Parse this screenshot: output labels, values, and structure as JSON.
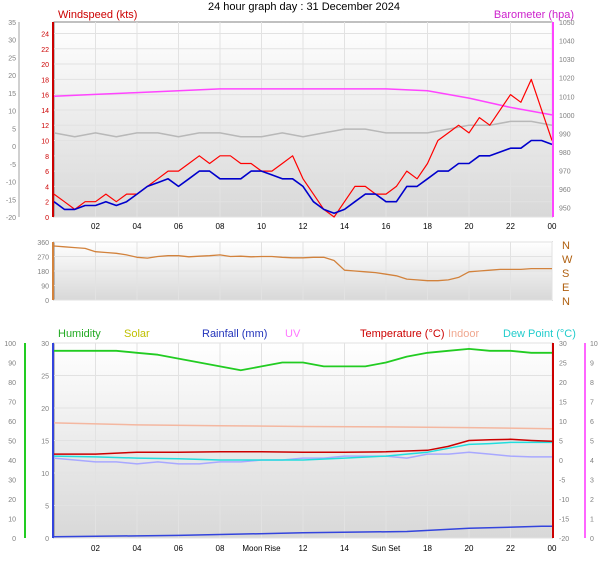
{
  "title": "24 hour graph day : 31 December 2024",
  "colors": {
    "windspeed": "#ff0000",
    "windspeed_avg": "#0000cc",
    "gust_avg": "#b8b8b8",
    "barometer": "#ff44ff",
    "direction": "#d2823c",
    "humidity": "#22cc22",
    "temperature": "#cc0000",
    "indoor": "#f4b7a0",
    "dewpoint": "#22dddd",
    "rainfall": "#3344dd",
    "uv": "#ff66ff",
    "solar": "#cccc00",
    "lowline": "#a8a8ff"
  },
  "chart_data": [
    {
      "type": "line",
      "labels": {
        "left": "Windspeed (kts)",
        "right": "Barometer (hpa)"
      },
      "x_ticks": [
        "02",
        "04",
        "06",
        "08",
        "10",
        "12",
        "14",
        "16",
        "18",
        "20",
        "22",
        "00"
      ],
      "x_range_hours": [
        0,
        24
      ],
      "y_left_ticks_outer": [
        -20,
        -15,
        -10,
        -5,
        0,
        5,
        10,
        15,
        20,
        25,
        30,
        35
      ],
      "y_left_ticks_inner": [
        0,
        2,
        4,
        6,
        8,
        10,
        12,
        14,
        16,
        18,
        20,
        22,
        24
      ],
      "y_left_range": [
        0,
        25.5
      ],
      "y_right_ticks": [
        950,
        960,
        970,
        980,
        990,
        1000,
        1010,
        1020,
        1030,
        1040,
        1050
      ],
      "y_right_range": [
        945,
        1050
      ],
      "series": [
        {
          "key": "windspeed",
          "x": [
            0,
            0.5,
            1,
            1.5,
            2,
            2.5,
            3,
            3.5,
            4,
            4.5,
            5,
            5.5,
            6,
            6.5,
            7,
            7.5,
            8,
            8.5,
            9,
            9.5,
            10,
            10.5,
            11,
            11.5,
            12,
            12.5,
            13,
            13.5,
            14,
            14.5,
            15,
            15.5,
            16,
            16.5,
            17,
            17.5,
            18,
            18.5,
            19,
            19.5,
            20,
            20.5,
            21,
            21.5,
            22,
            22.5,
            23,
            23.5,
            24
          ],
          "y": [
            3,
            2,
            1,
            2,
            2,
            3,
            2,
            3,
            3,
            4,
            5,
            6,
            6,
            7,
            8,
            7,
            8,
            8,
            7,
            7,
            6,
            6,
            7,
            8,
            5,
            3,
            1,
            0,
            2,
            4,
            4,
            3,
            3,
            4,
            6,
            5,
            7,
            10,
            11,
            12,
            11,
            13,
            12,
            14,
            16,
            15,
            18,
            14,
            10
          ]
        },
        {
          "key": "windspeed_avg",
          "x": [
            0,
            0.5,
            1,
            1.5,
            2,
            2.5,
            3,
            3.5,
            4,
            4.5,
            5,
            5.5,
            6,
            6.5,
            7,
            7.5,
            8,
            8.5,
            9,
            9.5,
            10,
            10.5,
            11,
            11.5,
            12,
            12.5,
            13,
            13.5,
            14,
            14.5,
            15,
            15.5,
            16,
            16.5,
            17,
            17.5,
            18,
            18.5,
            19,
            19.5,
            20,
            20.5,
            21,
            21.5,
            22,
            22.5,
            23,
            23.5,
            24
          ],
          "y": [
            2,
            1,
            1,
            1.5,
            1.5,
            2,
            1.5,
            2,
            3,
            4,
            4.5,
            5,
            4,
            5,
            6,
            6,
            5,
            5,
            5,
            6,
            6,
            5.5,
            5,
            5,
            4,
            2,
            1,
            0.5,
            1,
            2,
            3,
            3,
            2,
            2,
            4,
            4,
            5,
            6,
            6,
            7,
            7,
            8,
            8,
            8.5,
            9,
            9,
            10,
            10,
            9.5
          ]
        },
        {
          "key": "gust_avg",
          "x": [
            0,
            1,
            2,
            3,
            4,
            5,
            6,
            7,
            8,
            9,
            10,
            11,
            12,
            13,
            14,
            15,
            16,
            17,
            18,
            19,
            20,
            21,
            22,
            23,
            24
          ],
          "y": [
            11,
            10.5,
            11,
            10.5,
            11,
            11,
            10.5,
            11,
            11,
            10.5,
            10.5,
            11,
            10.5,
            11,
            11.5,
            11.5,
            11,
            11,
            11,
            11.5,
            12,
            12,
            12.5,
            12.5,
            12
          ]
        },
        {
          "key": "barometer",
          "axis": "right",
          "x": [
            0,
            2,
            4,
            6,
            8,
            10,
            12,
            14,
            16,
            18,
            20,
            22,
            24
          ],
          "y": [
            1010,
            1011,
            1012,
            1013,
            1014,
            1014,
            1014,
            1014,
            1014,
            1013,
            1009,
            1004,
            1000
          ]
        }
      ]
    },
    {
      "type": "scatter",
      "labels": {
        "compass": [
          "N",
          "W",
          "S",
          "E",
          "N"
        ]
      },
      "y_ticks": [
        0,
        90,
        180,
        270,
        360
      ],
      "y_range": [
        0,
        360
      ],
      "x_range_hours": [
        0,
        24
      ],
      "series": [
        {
          "key": "direction",
          "x": [
            0,
            0.5,
            1,
            1.5,
            2,
            2.5,
            3,
            3.5,
            4,
            4.5,
            5,
            5.5,
            6,
            6.5,
            7,
            7.5,
            8,
            8.5,
            9,
            9.5,
            10,
            10.5,
            11,
            11.5,
            12,
            12.5,
            13,
            13.5,
            14,
            14.5,
            15,
            15.5,
            16,
            16.5,
            17,
            17.5,
            18,
            18.5,
            19,
            19.5,
            20,
            20.5,
            21,
            21.5,
            22,
            22.5,
            23,
            23.5,
            24
          ],
          "y": [
            335,
            330,
            325,
            320,
            300,
            295,
            290,
            280,
            265,
            260,
            270,
            275,
            275,
            268,
            272,
            275,
            280,
            270,
            272,
            268,
            270,
            270,
            265,
            262,
            262,
            265,
            265,
            245,
            185,
            180,
            175,
            170,
            160,
            150,
            130,
            125,
            120,
            120,
            125,
            140,
            175,
            180,
            185,
            190,
            190,
            190,
            195,
            195,
            195
          ]
        }
      ]
    },
    {
      "type": "line",
      "labels": {
        "humidity": "Humidity",
        "solar": "Solar",
        "rainfall": "Rainfall (mm)",
        "uv": "UV",
        "temperature": "Temperature (°C)",
        "indoor": "Indoor",
        "dewpoint": "Dew Point (°C)"
      },
      "x_ticks": [
        "02",
        "04",
        "06",
        "08",
        "Moon Rise",
        "12",
        "14",
        "Sun Set",
        "18",
        "20",
        "22",
        "00"
      ],
      "x_tick_hours": [
        2,
        4,
        6,
        8,
        10,
        12,
        14,
        16,
        18,
        20,
        22,
        24
      ],
      "x_range_hours": [
        0,
        24
      ],
      "y_left_ticks_humidity": [
        0,
        10,
        20,
        30,
        40,
        50,
        60,
        70,
        80,
        90,
        100
      ],
      "y_left_ticks_rain": [
        0,
        5,
        10,
        15,
        20,
        25,
        30
      ],
      "y_right_ticks_temp": [
        -20,
        -15,
        -10,
        -5,
        0,
        5,
        10,
        15,
        20,
        25,
        30
      ],
      "y_right_ticks_uv": [
        0,
        1,
        2,
        3,
        4,
        5,
        6,
        7,
        8,
        9,
        10
      ],
      "humidity_range": [
        0,
        100
      ],
      "temp_range": [
        -20,
        30
      ],
      "series": [
        {
          "key": "humidity",
          "x": [
            0,
            1,
            2,
            3,
            4,
            5,
            6,
            7,
            8,
            9,
            10,
            11,
            12,
            13,
            14,
            15,
            16,
            17,
            18,
            19,
            20,
            21,
            22,
            23,
            24
          ],
          "y": [
            96,
            96,
            96,
            96,
            95,
            94,
            92,
            90,
            88,
            86,
            88,
            90,
            90,
            88,
            88,
            88,
            90,
            93,
            95,
            96,
            97,
            96,
            96,
            95,
            95
          ]
        },
        {
          "key": "temperature",
          "axis": "temp",
          "x": [
            0,
            2,
            4,
            6,
            8,
            10,
            12,
            14,
            16,
            18,
            19,
            20,
            21,
            22,
            23,
            24
          ],
          "y": [
            1.5,
            1.5,
            2,
            2,
            2.1,
            2.1,
            2,
            2,
            2.1,
            2.5,
            3.5,
            5,
            5.2,
            5.3,
            5,
            4.8
          ]
        },
        {
          "key": "dewpoint",
          "axis": "temp",
          "x": [
            0,
            2,
            4,
            6,
            8,
            10,
            12,
            14,
            16,
            17,
            18,
            19,
            20,
            21,
            22,
            23,
            24
          ],
          "y": [
            1,
            0.8,
            0.5,
            0.3,
            0,
            0,
            0,
            0.5,
            1,
            1.5,
            2,
            3,
            4,
            4.2,
            4.5,
            4.5,
            4.5
          ]
        },
        {
          "key": "indoor",
          "axis": "temp",
          "x": [
            0,
            4,
            8,
            12,
            16,
            20,
            24
          ],
          "y": [
            9.5,
            9,
            8.8,
            8.6,
            8.5,
            8.3,
            8
          ]
        },
        {
          "key": "lowline",
          "axis": "temp",
          "x": [
            0,
            1,
            2,
            3,
            4,
            5,
            6,
            7,
            8,
            9,
            10,
            11,
            12,
            13,
            14,
            15,
            16,
            17,
            18,
            19,
            20,
            21,
            22,
            23,
            24
          ],
          "y": [
            0.5,
            0,
            -0.5,
            -0.5,
            -1,
            -0.5,
            -1,
            -1,
            -0.5,
            -0.5,
            0,
            0,
            0.5,
            0.5,
            1,
            1,
            1,
            0.5,
            1.5,
            1.5,
            2,
            1.5,
            1,
            0.8,
            0.8
          ]
        },
        {
          "key": "rainfall",
          "axis": "rain",
          "x": [
            0,
            6,
            12,
            17,
            20,
            23.5,
            24
          ],
          "y": [
            0.2,
            0.4,
            0.8,
            1,
            1.5,
            1.8,
            1.8
          ]
        }
      ]
    }
  ]
}
